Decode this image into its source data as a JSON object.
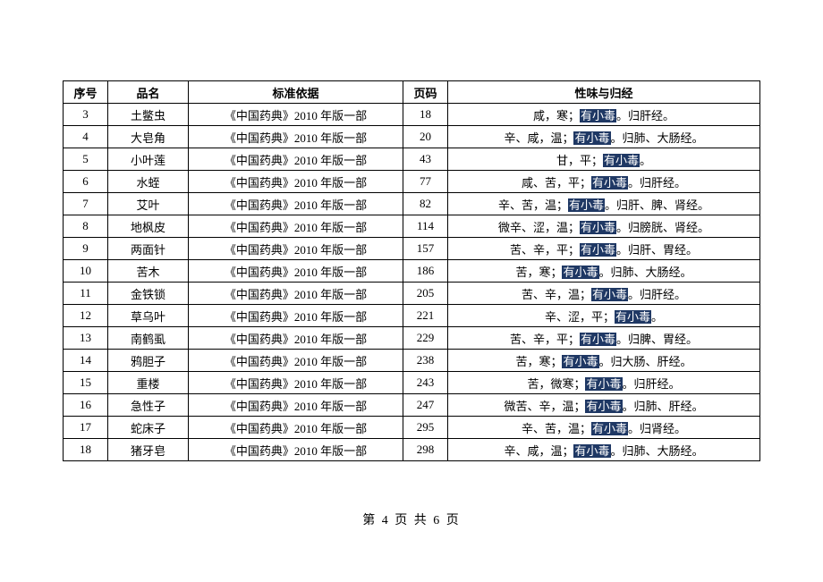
{
  "table": {
    "headers": {
      "seq": "序号",
      "name": "品名",
      "basis": "标准依据",
      "page": "页码",
      "desc": "性味与归经"
    },
    "highlight_text": "有小毒",
    "highlight_bg": "#1f3864",
    "highlight_fg": "#ffffff",
    "rows": [
      {
        "seq": "3",
        "name": "土鳖虫",
        "basis": "《中国药典》2010 年版一部",
        "page": "18",
        "desc_pre": "咸，寒；",
        "desc_hl": "有小毒",
        "desc_post": "。归肝经。"
      },
      {
        "seq": "4",
        "name": "大皂角",
        "basis": "《中国药典》2010 年版一部",
        "page": "20",
        "desc_pre": "辛、咸，温；",
        "desc_hl": "有小毒",
        "desc_post": "。归肺、大肠经。"
      },
      {
        "seq": "5",
        "name": "小叶莲",
        "basis": "《中国药典》2010 年版一部",
        "page": "43",
        "desc_pre": "甘，平；",
        "desc_hl": "有小毒",
        "desc_post": "。"
      },
      {
        "seq": "6",
        "name": "水蛭",
        "basis": "《中国药典》2010 年版一部",
        "page": "77",
        "desc_pre": "咸、苦，平；",
        "desc_hl": "有小毒",
        "desc_post": "。归肝经。"
      },
      {
        "seq": "7",
        "name": "艾叶",
        "basis": "《中国药典》2010 年版一部",
        "page": "82",
        "desc_pre": "辛、苦，温；",
        "desc_hl": "有小毒",
        "desc_post": "。归肝、脾、肾经。"
      },
      {
        "seq": "8",
        "name": "地枫皮",
        "basis": "《中国药典》2010 年版一部",
        "page": "114",
        "desc_pre": "微辛、涩，温；",
        "desc_hl": "有小毒",
        "desc_post": "。归膀胱、肾经。"
      },
      {
        "seq": "9",
        "name": "两面针",
        "basis": "《中国药典》2010 年版一部",
        "page": "157",
        "desc_pre": "苦、辛，平；",
        "desc_hl": "有小毒",
        "desc_post": "。归肝、胃经。"
      },
      {
        "seq": "10",
        "name": "苦木",
        "basis": "《中国药典》2010 年版一部",
        "page": "186",
        "desc_pre": "苦，寒；",
        "desc_hl": "有小毒",
        "desc_post": "。归肺、大肠经。"
      },
      {
        "seq": "11",
        "name": "金铁锁",
        "basis": "《中国药典》2010 年版一部",
        "page": "205",
        "desc_pre": "苦、辛，温；",
        "desc_hl": "有小毒",
        "desc_post": "。归肝经。"
      },
      {
        "seq": "12",
        "name": "草乌叶",
        "basis": "《中国药典》2010 年版一部",
        "page": "221",
        "desc_pre": "辛、涩，平；",
        "desc_hl": "有小毒",
        "desc_post": "。"
      },
      {
        "seq": "13",
        "name": "南鹤虱",
        "basis": "《中国药典》2010 年版一部",
        "page": "229",
        "desc_pre": "苦、辛，平；",
        "desc_hl": "有小毒",
        "desc_post": "。归脾、胃经。"
      },
      {
        "seq": "14",
        "name": "鸦胆子",
        "basis": "《中国药典》2010 年版一部",
        "page": "238",
        "desc_pre": "苦，寒；",
        "desc_hl": "有小毒",
        "desc_post": "。归大肠、肝经。"
      },
      {
        "seq": "15",
        "name": "重楼",
        "basis": "《中国药典》2010 年版一部",
        "page": "243",
        "desc_pre": "苦，微寒；",
        "desc_hl": "有小毒",
        "desc_post": "。归肝经。"
      },
      {
        "seq": "16",
        "name": "急性子",
        "basis": "《中国药典》2010 年版一部",
        "page": "247",
        "desc_pre": "微苦、辛，温；",
        "desc_hl": "有小毒",
        "desc_post": "。归肺、肝经。"
      },
      {
        "seq": "17",
        "name": "蛇床子",
        "basis": "《中国药典》2010 年版一部",
        "page": "295",
        "desc_pre": "辛、苦，温；",
        "desc_hl": "有小毒",
        "desc_post": "。归肾经。"
      },
      {
        "seq": "18",
        "name": "猪牙皂",
        "basis": "《中国药典》2010 年版一部",
        "page": "298",
        "desc_pre": "辛、咸，温；",
        "desc_hl": "有小毒",
        "desc_post": "。归肺、大肠经。"
      }
    ]
  },
  "footer": {
    "text": "第 4 页 共 6 页",
    "current": 4,
    "total": 6
  }
}
